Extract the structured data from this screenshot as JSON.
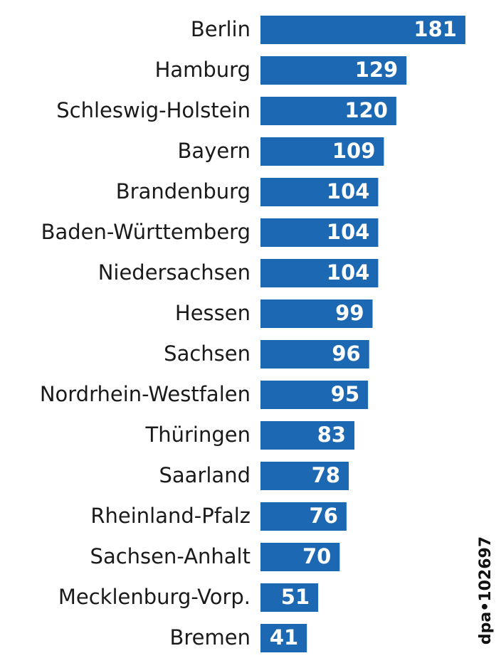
{
  "chart_data": {
    "type": "bar",
    "orientation": "horizontal",
    "categories": [
      "Berlin",
      "Hamburg",
      "Schleswig-Holstein",
      "Bayern",
      "Brandenburg",
      "Baden-Württemberg",
      "Niedersachsen",
      "Hessen",
      "Sachsen",
      "Nordrhein-Westfalen",
      "Thüringen",
      "Saarland",
      "Rheinland-Pfalz",
      "Sachsen-Anhalt",
      "Mecklenburg-Vorp.",
      "Bremen"
    ],
    "values": [
      181,
      129,
      120,
      109,
      104,
      104,
      104,
      99,
      96,
      95,
      83,
      78,
      76,
      70,
      51,
      41
    ],
    "color": "#1c68b2",
    "source": "dpa•102697"
  }
}
